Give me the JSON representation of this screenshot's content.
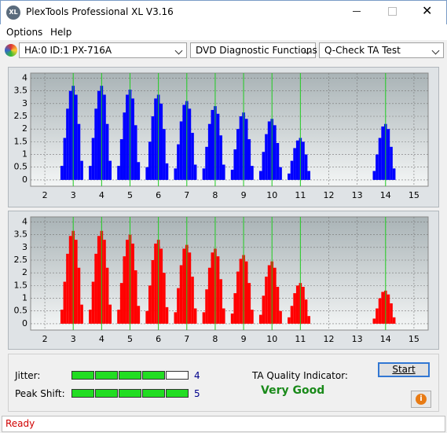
{
  "window": {
    "title": "PlexTools Professional XL V3.16",
    "icon": "XL"
  },
  "menu": [
    "Options",
    "Help"
  ],
  "toolbar": {
    "drive": "HA:0 ID:1  PX-716A",
    "function": "DVD Diagnostic Functions",
    "test": "Q-Check TA Test"
  },
  "chart_data": [
    {
      "type": "bar",
      "color": "#0000ff",
      "grid": true,
      "xlim": [
        1.5,
        15.5
      ],
      "ylim": [
        -0.25,
        4.2
      ],
      "xticks": [
        2,
        3,
        4,
        5,
        6,
        7,
        8,
        9,
        10,
        11,
        12,
        13,
        14,
        15
      ],
      "yticks": [
        0,
        0.5,
        1,
        1.5,
        2,
        2.5,
        3,
        3.5,
        4
      ],
      "reference_lines": [
        3,
        4,
        5,
        6,
        7,
        8,
        9,
        10,
        11,
        14
      ],
      "x": [
        2.6,
        2.7,
        2.8,
        2.9,
        3.0,
        3.1,
        3.2,
        3.3,
        3.6,
        3.7,
        3.8,
        3.9,
        4.0,
        4.1,
        4.2,
        4.3,
        4.6,
        4.7,
        4.8,
        4.9,
        5.0,
        5.1,
        5.2,
        5.3,
        5.6,
        5.7,
        5.8,
        5.9,
        6.0,
        6.1,
        6.2,
        6.3,
        6.6,
        6.7,
        6.8,
        6.9,
        7.0,
        7.1,
        7.2,
        7.3,
        7.6,
        7.7,
        7.8,
        7.9,
        8.0,
        8.1,
        8.2,
        8.3,
        8.6,
        8.7,
        8.8,
        8.9,
        9.0,
        9.1,
        9.2,
        9.3,
        9.6,
        9.7,
        9.8,
        9.9,
        10.0,
        10.1,
        10.2,
        10.3,
        10.6,
        10.7,
        10.8,
        10.9,
        11.0,
        11.1,
        11.2,
        11.3,
        13.6,
        13.7,
        13.8,
        13.9,
        14.0,
        14.1,
        14.2,
        14.3
      ],
      "values": [
        0.55,
        1.65,
        2.8,
        3.5,
        3.7,
        3.35,
        2.2,
        0.75,
        0.55,
        1.65,
        2.8,
        3.5,
        3.7,
        3.35,
        2.2,
        0.75,
        0.55,
        1.6,
        2.65,
        3.35,
        3.55,
        3.2,
        2.15,
        0.7,
        0.5,
        1.5,
        2.5,
        3.2,
        3.35,
        3.0,
        2.0,
        0.65,
        0.45,
        1.4,
        2.3,
        2.95,
        3.1,
        2.8,
        1.85,
        0.6,
        0.45,
        1.3,
        2.2,
        2.75,
        2.9,
        2.6,
        1.75,
        0.6,
        0.4,
        1.2,
        2.0,
        2.5,
        2.65,
        2.4,
        1.6,
        0.55,
        0.35,
        1.1,
        1.8,
        2.3,
        2.4,
        2.15,
        1.45,
        0.5,
        0.25,
        0.75,
        1.25,
        1.55,
        1.65,
        1.5,
        1.0,
        0.35,
        0.35,
        1.0,
        1.65,
        2.1,
        2.2,
        2.0,
        1.3,
        0.45
      ]
    },
    {
      "type": "bar",
      "color": "#ff0000",
      "grid": true,
      "xlim": [
        1.5,
        15.5
      ],
      "ylim": [
        -0.25,
        4.2
      ],
      "xticks": [
        2,
        3,
        4,
        5,
        6,
        7,
        8,
        9,
        10,
        11,
        12,
        13,
        14,
        15
      ],
      "yticks": [
        0,
        0.5,
        1,
        1.5,
        2,
        2.5,
        3,
        3.5,
        4
      ],
      "reference_lines": [
        3,
        4,
        5,
        6,
        7,
        8,
        9,
        10,
        11,
        14
      ],
      "x": [
        2.6,
        2.7,
        2.8,
        2.9,
        3.0,
        3.1,
        3.2,
        3.3,
        3.6,
        3.7,
        3.8,
        3.9,
        4.0,
        4.1,
        4.2,
        4.3,
        4.6,
        4.7,
        4.8,
        4.9,
        5.0,
        5.1,
        5.2,
        5.3,
        5.6,
        5.7,
        5.8,
        5.9,
        6.0,
        6.1,
        6.2,
        6.3,
        6.6,
        6.7,
        6.8,
        6.9,
        7.0,
        7.1,
        7.2,
        7.3,
        7.6,
        7.7,
        7.8,
        7.9,
        8.0,
        8.1,
        8.2,
        8.3,
        8.6,
        8.7,
        8.8,
        8.9,
        9.0,
        9.1,
        9.2,
        9.3,
        9.6,
        9.7,
        9.8,
        9.9,
        10.0,
        10.1,
        10.2,
        10.3,
        10.6,
        10.7,
        10.8,
        10.9,
        11.0,
        11.1,
        11.2,
        11.3,
        13.6,
        13.7,
        13.8,
        13.9,
        14.0,
        14.1,
        14.2,
        14.3
      ],
      "values": [
        0.55,
        1.65,
        2.75,
        3.45,
        3.65,
        3.3,
        2.2,
        0.75,
        0.55,
        1.65,
        2.75,
        3.45,
        3.65,
        3.3,
        2.2,
        0.75,
        0.55,
        1.6,
        2.65,
        3.3,
        3.5,
        3.15,
        2.1,
        0.7,
        0.5,
        1.5,
        2.5,
        3.15,
        3.3,
        2.95,
        2.0,
        0.65,
        0.45,
        1.4,
        2.3,
        2.95,
        3.1,
        2.8,
        1.85,
        0.6,
        0.45,
        1.35,
        2.2,
        2.8,
        2.95,
        2.65,
        1.75,
        0.6,
        0.4,
        1.2,
        2.05,
        2.55,
        2.7,
        2.45,
        1.6,
        0.55,
        0.35,
        1.1,
        1.85,
        2.3,
        2.45,
        2.2,
        1.45,
        0.5,
        0.25,
        0.7,
        1.2,
        1.5,
        1.6,
        1.45,
        0.95,
        0.3,
        0.2,
        0.6,
        1.0,
        1.25,
        1.3,
        1.15,
        0.8,
        0.25
      ]
    }
  ],
  "indicators": [
    {
      "label": "Jitter:",
      "value": 4
    },
    {
      "label": "Peak Shift:",
      "value": 5
    }
  ],
  "ta_quality": {
    "label": "TA Quality Indicator:",
    "result": "Very Good"
  },
  "button": "Start",
  "status": "Ready"
}
